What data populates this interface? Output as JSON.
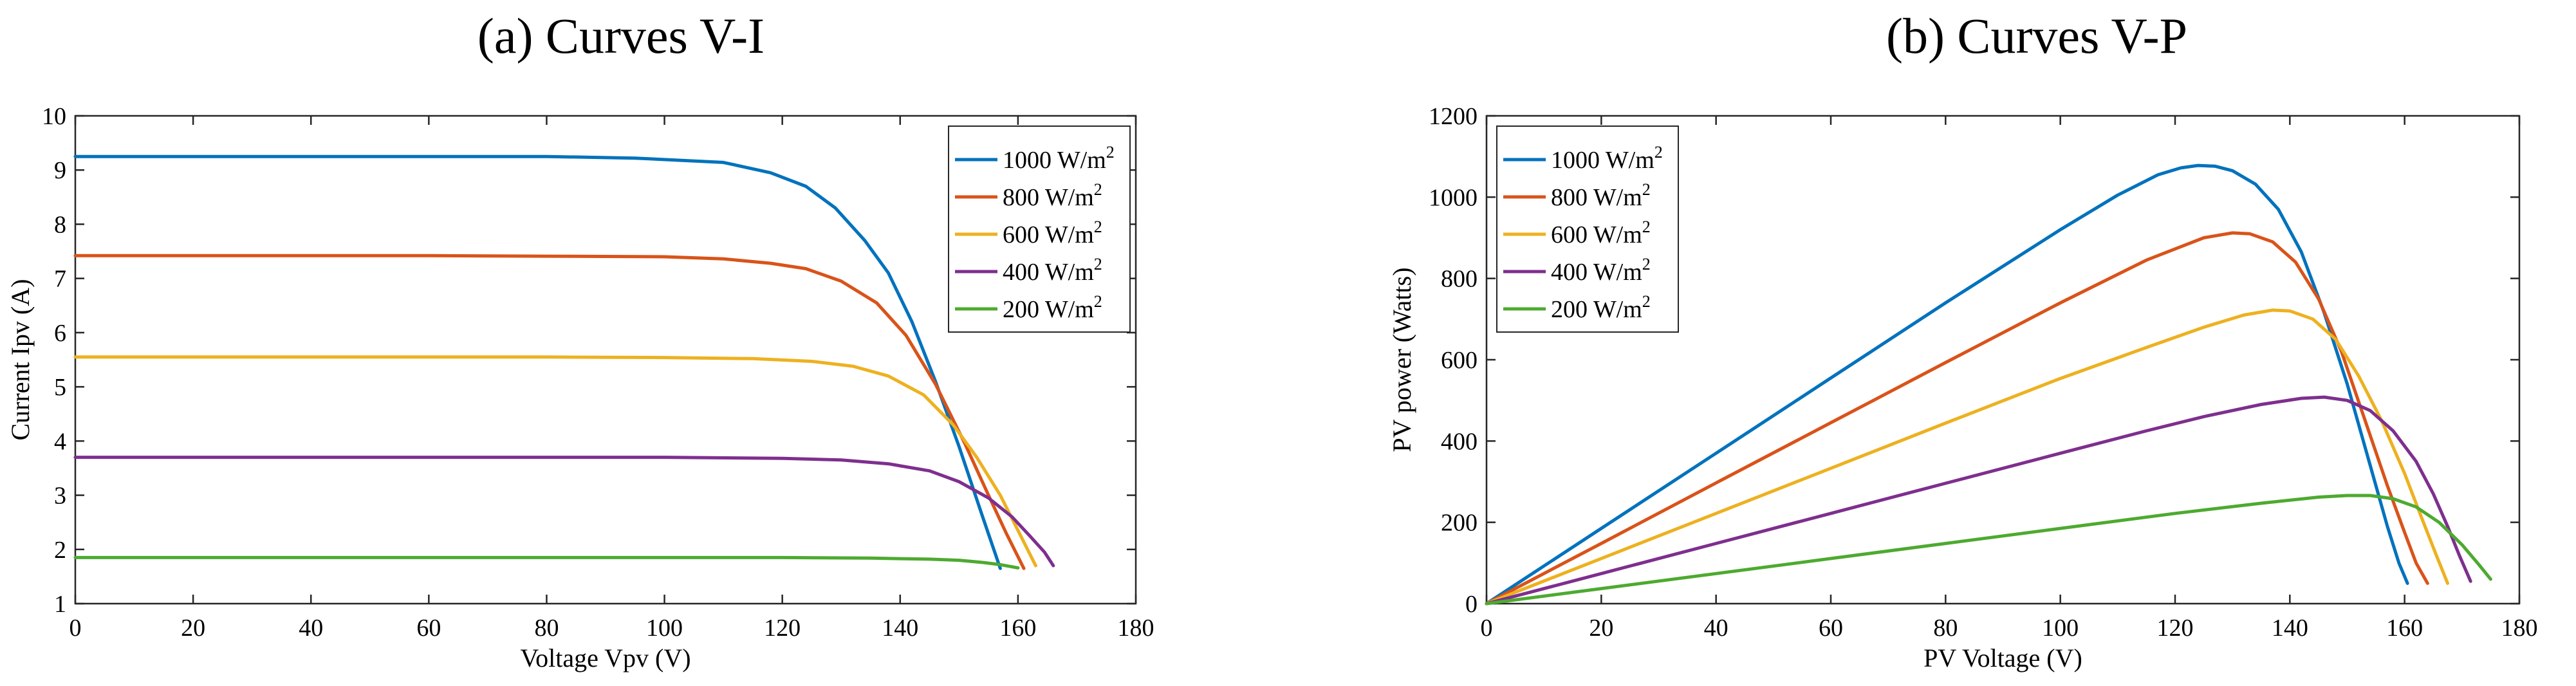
{
  "chart_data": [
    {
      "type": "line",
      "title": "(a)  Curves V-I",
      "xlabel": "Voltage Vpv (V)",
      "ylabel": "Current Ipv (A)",
      "xlim": [
        0,
        180
      ],
      "ylim": [
        1,
        10
      ],
      "xticks": [
        "0",
        "20",
        "40",
        "60",
        "80",
        "100",
        "120",
        "140",
        "160",
        "180"
      ],
      "yticks": [
        "1",
        "2",
        "3",
        "4",
        "5",
        "6",
        "7",
        "8",
        "9",
        "10"
      ],
      "grid": false,
      "legend_position": "top-right",
      "series": [
        {
          "name": "1000 W/m",
          "sup": "2",
          "color": "#0072BD",
          "x": [
            0,
            20,
            40,
            60,
            80,
            95,
            110,
            118,
            124,
            129,
            134,
            138,
            142,
            146,
            150,
            154,
            157
          ],
          "y": [
            9.25,
            9.25,
            9.25,
            9.25,
            9.25,
            9.22,
            9.14,
            8.95,
            8.7,
            8.3,
            7.7,
            7.1,
            6.2,
            5.1,
            3.9,
            2.6,
            1.65
          ]
        },
        {
          "name": "800 W/m",
          "sup": "2",
          "color": "#D95319",
          "x": [
            0,
            20,
            40,
            60,
            80,
            100,
            110,
            118,
            124,
            130,
            136,
            141,
            146,
            151,
            155,
            158,
            161
          ],
          "y": [
            7.42,
            7.42,
            7.42,
            7.42,
            7.41,
            7.4,
            7.36,
            7.28,
            7.18,
            6.95,
            6.55,
            5.95,
            5.05,
            3.95,
            3.0,
            2.3,
            1.65
          ]
        },
        {
          "name": "600 W/m",
          "sup": "2",
          "color": "#EDB120",
          "x": [
            0,
            20,
            40,
            60,
            80,
            100,
            115,
            125,
            132,
            138,
            144,
            149,
            153,
            157,
            160,
            163
          ],
          "y": [
            5.55,
            5.55,
            5.55,
            5.55,
            5.55,
            5.54,
            5.52,
            5.47,
            5.38,
            5.2,
            4.85,
            4.3,
            3.7,
            3.0,
            2.35,
            1.7
          ]
        },
        {
          "name": "400 W/m",
          "sup": "2",
          "color": "#7E2F8E",
          "x": [
            0,
            20,
            40,
            60,
            80,
            100,
            120,
            130,
            138,
            145,
            150,
            155,
            159,
            162,
            164.5,
            166
          ],
          "y": [
            3.7,
            3.7,
            3.7,
            3.7,
            3.7,
            3.7,
            3.68,
            3.65,
            3.58,
            3.45,
            3.25,
            2.95,
            2.6,
            2.25,
            1.95,
            1.7
          ]
        },
        {
          "name": "200 W/m",
          "sup": "2",
          "color": "#4DAA30",
          "x": [
            0,
            20,
            40,
            60,
            80,
            100,
            120,
            135,
            145,
            150,
            154,
            157,
            160
          ],
          "y": [
            1.85,
            1.85,
            1.85,
            1.85,
            1.85,
            1.85,
            1.85,
            1.84,
            1.82,
            1.8,
            1.76,
            1.72,
            1.66
          ]
        }
      ]
    },
    {
      "type": "line",
      "title": "(b)  Curves V-P",
      "xlabel": "PV Voltage (V)",
      "ylabel": "PV power (Watts)",
      "xlim": [
        0,
        180
      ],
      "ylim": [
        0,
        1200
      ],
      "xticks": [
        "0",
        "20",
        "40",
        "60",
        "80",
        "100",
        "120",
        "140",
        "160",
        "180"
      ],
      "yticks": [
        "0",
        "200",
        "400",
        "600",
        "800",
        "1000",
        "1200"
      ],
      "grid": false,
      "legend_position": "top-left",
      "series": [
        {
          "name": "1000 W/m",
          "sup": "2",
          "color": "#0072BD",
          "x": [
            0,
            20,
            40,
            60,
            80,
            100,
            110,
            117,
            121,
            124,
            127,
            130,
            134,
            138,
            142,
            146,
            150,
            154,
            157,
            159,
            160.5
          ],
          "y": [
            0,
            185,
            370,
            555,
            740,
            920,
            1005,
            1055,
            1072,
            1078,
            1076,
            1065,
            1032,
            970,
            865,
            715,
            540,
            340,
            190,
            100,
            50
          ]
        },
        {
          "name": "800 W/m",
          "sup": "2",
          "color": "#D95319",
          "x": [
            0,
            20,
            40,
            60,
            80,
            100,
            115,
            125,
            130,
            133,
            137,
            141,
            145,
            149,
            153,
            157,
            160,
            162,
            164
          ],
          "y": [
            0,
            148,
            297,
            445,
            593,
            740,
            845,
            900,
            912,
            910,
            890,
            840,
            750,
            620,
            455,
            290,
            175,
            100,
            50
          ]
        },
        {
          "name": "600 W/m",
          "sup": "2",
          "color": "#EDB120",
          "x": [
            0,
            20,
            40,
            60,
            80,
            100,
            115,
            125,
            132,
            137,
            140,
            144,
            148,
            152,
            156,
            160,
            163,
            165.5,
            167.5
          ],
          "y": [
            0,
            111,
            222,
            333,
            444,
            554,
            630,
            680,
            710,
            722,
            720,
            700,
            650,
            560,
            450,
            320,
            210,
            120,
            50
          ]
        },
        {
          "name": "400 W/m",
          "sup": "2",
          "color": "#7E2F8E",
          "x": [
            0,
            20,
            40,
            60,
            80,
            100,
            115,
            125,
            135,
            142,
            146,
            150,
            154,
            158,
            162,
            165,
            167.5,
            169.5,
            171.5
          ],
          "y": [
            0,
            74,
            148,
            222,
            296,
            370,
            425,
            460,
            490,
            505,
            508,
            500,
            475,
            425,
            350,
            270,
            190,
            120,
            55
          ]
        },
        {
          "name": "200 W/m",
          "sup": "2",
          "color": "#4DAA30",
          "x": [
            0,
            20,
            40,
            60,
            80,
            100,
            120,
            135,
            145,
            150,
            154,
            158,
            162,
            166,
            170,
            173,
            175
          ],
          "y": [
            0,
            37,
            74,
            111,
            148,
            185,
            222,
            247,
            262,
            266,
            266,
            258,
            238,
            200,
            145,
            95,
            60
          ]
        }
      ]
    }
  ]
}
